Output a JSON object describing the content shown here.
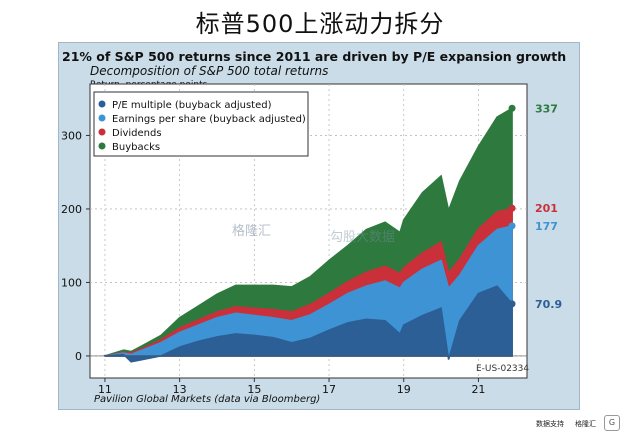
{
  "page_title": "标普500上涨动力拆分",
  "watermark": "格隆汇",
  "watermark2": "勾股大数据",
  "source": "Pavilion Global Markets (data via Bloomberg)",
  "code": "E-US-02334",
  "footer_note": "数据支持",
  "footer_brand": "格隆汇",
  "chart_data": {
    "type": "area",
    "title": "21% of S&P 500 returns since 2011 are driven by P/E expansion growth",
    "subtitle": "Decomposition of S&P 500 total returns",
    "ylabel": "Return, percentage points",
    "xlabel": "",
    "xlim": [
      2010.6,
      2022.3
    ],
    "ylim": [
      -30,
      370
    ],
    "xticks": [
      2011,
      2013,
      2015,
      2017,
      2019,
      2021
    ],
    "xtick_labels": [
      "11",
      "13",
      "15",
      "17",
      "19",
      "21"
    ],
    "yticks": [
      0,
      100,
      200,
      300
    ],
    "ytick_labels": [
      "0",
      "100",
      "200",
      "300"
    ],
    "grid": true,
    "legend_position": "top-left",
    "x": [
      2011.0,
      2011.5,
      2011.7,
      2012.0,
      2012.5,
      2013.0,
      2013.5,
      2014.0,
      2014.5,
      2015.0,
      2015.5,
      2016.0,
      2016.5,
      2017.0,
      2017.5,
      2018.0,
      2018.5,
      2018.9,
      2019.0,
      2019.5,
      2020.0,
      2020.2,
      2020.5,
      2021.0,
      2021.5,
      2021.9
    ],
    "series": [
      {
        "name": "P/E multiple (buyback adjusted)",
        "color": "#2c5f96",
        "end_label": "70.9",
        "values": [
          0,
          2,
          -8,
          -5,
          0,
          12,
          20,
          26,
          30,
          28,
          25,
          18,
          24,
          35,
          45,
          50,
          48,
          30,
          42,
          55,
          65,
          -5,
          48,
          85,
          95,
          70.9
        ]
      },
      {
        "name": "Earnings per share (buyback adjusted)",
        "color": "#3e93d4",
        "end_label": "177",
        "values": [
          0,
          4,
          2,
          8,
          18,
          32,
          42,
          52,
          58,
          55,
          52,
          48,
          56,
          70,
          85,
          95,
          102,
          92,
          100,
          118,
          130,
          92,
          110,
          150,
          172,
          177
        ]
      },
      {
        "name": "Dividends",
        "color": "#c9303a",
        "end_label": "201",
        "values": [
          0,
          5,
          4,
          10,
          22,
          38,
          49,
          60,
          67,
          65,
          63,
          60,
          70,
          85,
          101,
          114,
          122,
          112,
          120,
          140,
          155,
          113,
          132,
          173,
          196,
          201
        ]
      },
      {
        "name": "Buybacks",
        "color": "#2e7a3e",
        "end_label": "337",
        "values": [
          0,
          8,
          6,
          14,
          28,
          52,
          68,
          84,
          96,
          96,
          96,
          94,
          108,
          130,
          150,
          172,
          182,
          168,
          185,
          222,
          245,
          198,
          238,
          285,
          325,
          337
        ]
      }
    ]
  }
}
